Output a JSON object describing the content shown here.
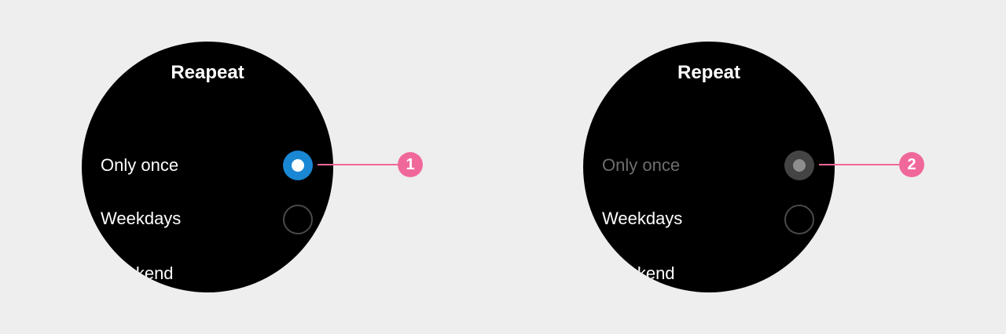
{
  "left_watch": {
    "title": "Reapeat",
    "options": [
      {
        "label": "Only once",
        "state": "selected"
      },
      {
        "label": "Weekdays",
        "state": "unselected"
      },
      {
        "label": "Weekend",
        "state": "unselected"
      }
    ]
  },
  "right_watch": {
    "title": "Repeat",
    "options": [
      {
        "label": "Only once",
        "state": "pressed"
      },
      {
        "label": "Weekdays",
        "state": "unselected"
      },
      {
        "label": "Weekend",
        "state": "unselected"
      }
    ]
  },
  "callouts": [
    {
      "number": "1"
    },
    {
      "number": "2"
    }
  ],
  "colors": {
    "background": "#eeeeee",
    "watch_face": "#000000",
    "accent_selected": "#1a87d4",
    "callout": "#f0689a",
    "disabled_text": "#6e6e6e",
    "pressed_radio": "#444444"
  }
}
